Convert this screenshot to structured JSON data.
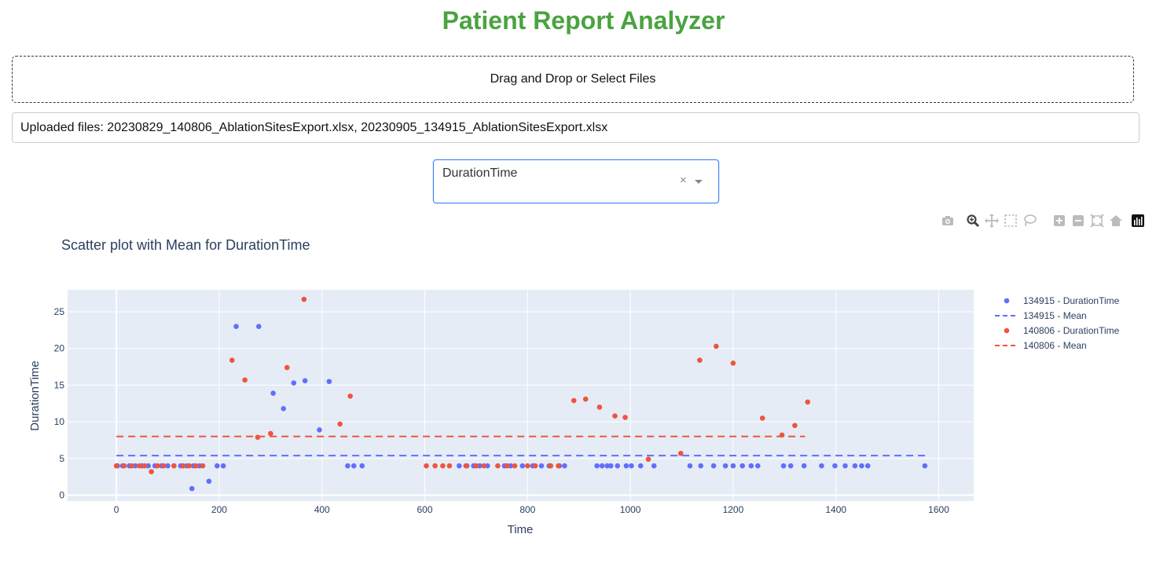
{
  "header": {
    "title": "Patient Report Analyzer"
  },
  "upload": {
    "drop_label": "Drag and Drop or Select Files",
    "uploaded_text": "Uploaded files: 20230829_140806_AblationSitesExport.xlsx, 20230905_134915_AblationSitesExport.xlsx"
  },
  "selector": {
    "selected": "DurationTime",
    "clear_glyph": "×"
  },
  "modebar": {
    "icons": [
      "camera-icon",
      "zoom-icon",
      "pan-icon",
      "box-select-icon",
      "lasso-select-icon",
      "zoom-in-icon",
      "zoom-out-icon",
      "autoscale-icon",
      "reset-axes-icon",
      "plotly-logo-icon"
    ]
  },
  "chart_data": {
    "type": "scatter",
    "title": "Scatter plot with Mean for DurationTime",
    "xlabel": "Time",
    "ylabel": "DurationTime",
    "xlim": [
      -95,
      1668
    ],
    "ylim": [
      -0.8,
      28
    ],
    "xticks": [
      0,
      200,
      400,
      600,
      800,
      1000,
      1200,
      1400,
      1600
    ],
    "yticks": [
      0,
      5,
      10,
      15,
      20,
      25
    ],
    "grid": true,
    "background": "#e5ecf6",
    "legend_position": "right",
    "series": [
      {
        "name": "134915 - DurationTime",
        "mode": "markers",
        "color": "#636efa",
        "x": [
          2,
          12,
          25,
          37,
          50,
          62,
          75,
          88,
          100,
          112,
          125,
          137,
          147,
          150,
          162,
          180,
          196,
          208,
          233,
          277,
          305,
          325,
          345,
          367,
          395,
          414,
          450,
          462,
          478,
          667,
          682,
          695,
          707,
          722,
          755,
          767,
          790,
          810,
          827,
          842,
          862,
          872,
          935,
          945,
          955,
          962,
          975,
          992,
          1002,
          1020,
          1046,
          1116,
          1137,
          1162,
          1185,
          1200,
          1218,
          1235,
          1248,
          1298,
          1312,
          1338,
          1372,
          1398,
          1418,
          1437,
          1450,
          1462,
          1573
        ],
        "y": [
          4,
          4,
          4,
          4,
          4,
          4,
          4,
          4,
          4,
          4,
          4,
          4,
          0.9,
          4,
          4,
          1.9,
          4,
          4,
          23,
          23,
          13.9,
          11.8,
          15.3,
          15.6,
          8.9,
          15.5,
          4,
          4,
          4,
          4,
          4,
          4,
          4,
          4,
          4,
          4,
          4,
          4,
          4,
          4,
          4,
          4,
          4,
          4,
          4,
          4,
          4,
          4,
          4,
          4,
          4,
          4,
          4,
          4,
          4,
          4,
          4,
          4,
          4,
          4,
          4,
          4,
          4,
          4,
          4,
          4,
          4,
          4,
          4
        ]
      },
      {
        "name": "134915 - Mean",
        "mode": "lines-dash",
        "color": "#636efa",
        "x": [
          0,
          1575
        ],
        "y": [
          5.4,
          5.4
        ]
      },
      {
        "name": "140806 - DurationTime",
        "mode": "markers",
        "color": "#ef553b",
        "x": [
          0,
          15,
          30,
          45,
          55,
          68,
          80,
          92,
          112,
          130,
          142,
          155,
          168,
          225,
          250,
          275,
          300,
          332,
          365,
          435,
          455,
          603,
          620,
          635,
          648,
          680,
          700,
          715,
          742,
          760,
          775,
          800,
          815,
          845,
          860,
          890,
          913,
          940,
          970,
          990,
          1035,
          1098,
          1135,
          1167,
          1200,
          1257,
          1295,
          1320,
          1345
        ],
        "y": [
          4,
          4,
          4,
          4,
          4,
          3.2,
          4,
          4,
          4,
          4,
          4,
          4,
          4,
          18.4,
          15.7,
          7.9,
          8.4,
          17.4,
          26.7,
          9.7,
          13.5,
          4,
          4,
          4,
          4,
          4,
          4,
          4,
          4,
          4,
          4,
          4,
          4,
          4,
          4,
          12.9,
          13.1,
          12,
          10.8,
          10.6,
          4.9,
          5.7,
          18.4,
          20.3,
          18,
          10.5,
          8.2,
          9.5,
          12.7
        ]
      },
      {
        "name": "140806 - Mean",
        "mode": "lines-dash",
        "color": "#ef553b",
        "x": [
          0,
          1340
        ],
        "y": [
          8,
          8
        ]
      }
    ]
  }
}
